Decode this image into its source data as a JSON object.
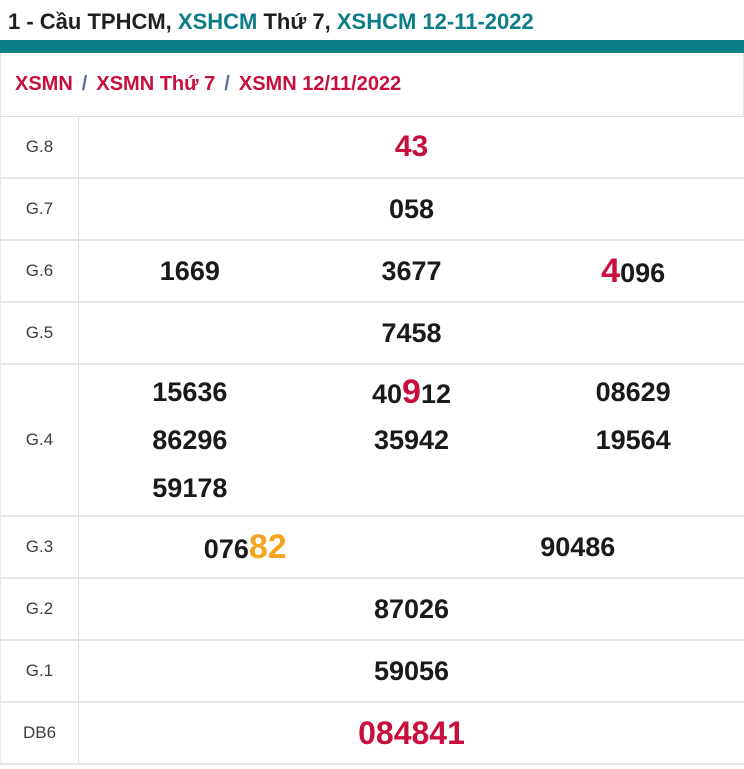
{
  "colors": {
    "accent_teal": "#0a7e86",
    "highlight_red": "#c80f3c",
    "highlight_orange": "#f6a41e"
  },
  "header": {
    "title_segments": [
      {
        "text": "1 - Cầu TPHCM, ",
        "color": "dark"
      },
      {
        "text": "XSHCM ",
        "color": "teal"
      },
      {
        "text": "Thứ 7, ",
        "color": "dark"
      },
      {
        "text": "XSHCM 12-11-2022",
        "color": "teal"
      }
    ]
  },
  "breadcrumb": {
    "separator": "/",
    "items": [
      {
        "label": "XSMN"
      },
      {
        "label": "XSMN Thứ 7"
      },
      {
        "label": "XSMN 12/11/2022"
      }
    ]
  },
  "results_table": {
    "rows": [
      {
        "label": "G.8",
        "cols": 1,
        "cells": [
          [
            {
              "text": "43",
              "highlight": "red",
              "size": "lg"
            }
          ]
        ]
      },
      {
        "label": "G.7",
        "cols": 1,
        "cells": [
          [
            {
              "text": "058"
            }
          ]
        ]
      },
      {
        "label": "G.6",
        "cols": 3,
        "cells": [
          [
            {
              "text": "1669"
            }
          ],
          [
            {
              "text": "3677"
            }
          ],
          [
            {
              "text": "4",
              "highlight": "red",
              "size": "xxl"
            },
            {
              "text": "096"
            }
          ]
        ]
      },
      {
        "label": "G.5",
        "cols": 1,
        "cells": [
          [
            {
              "text": "7458"
            }
          ]
        ]
      },
      {
        "label": "G.4",
        "cols": 3,
        "multiline": true,
        "cells": [
          [
            {
              "text": "15636"
            }
          ],
          [
            {
              "text": "40"
            },
            {
              "text": "9",
              "highlight": "red",
              "size": "xxl"
            },
            {
              "text": "12"
            }
          ],
          [
            {
              "text": "08629"
            }
          ],
          [
            {
              "text": "86296"
            }
          ],
          [
            {
              "text": "35942"
            }
          ],
          [
            {
              "text": "19564"
            }
          ],
          [
            {
              "text": "59178"
            }
          ]
        ]
      },
      {
        "label": "G.3",
        "cols": 2,
        "cells": [
          [
            {
              "text": "076"
            },
            {
              "text": "82",
              "highlight": "orange",
              "size": "xxl"
            }
          ],
          [
            {
              "text": "90486"
            }
          ]
        ]
      },
      {
        "label": "G.2",
        "cols": 1,
        "cells": [
          [
            {
              "text": "87026"
            }
          ]
        ]
      },
      {
        "label": "G.1",
        "cols": 1,
        "cells": [
          [
            {
              "text": "59056"
            }
          ]
        ]
      },
      {
        "label": "DB6",
        "cols": 1,
        "cells": [
          [
            {
              "text": "084841",
              "highlight": "red",
              "size": "xl"
            }
          ]
        ]
      }
    ]
  }
}
